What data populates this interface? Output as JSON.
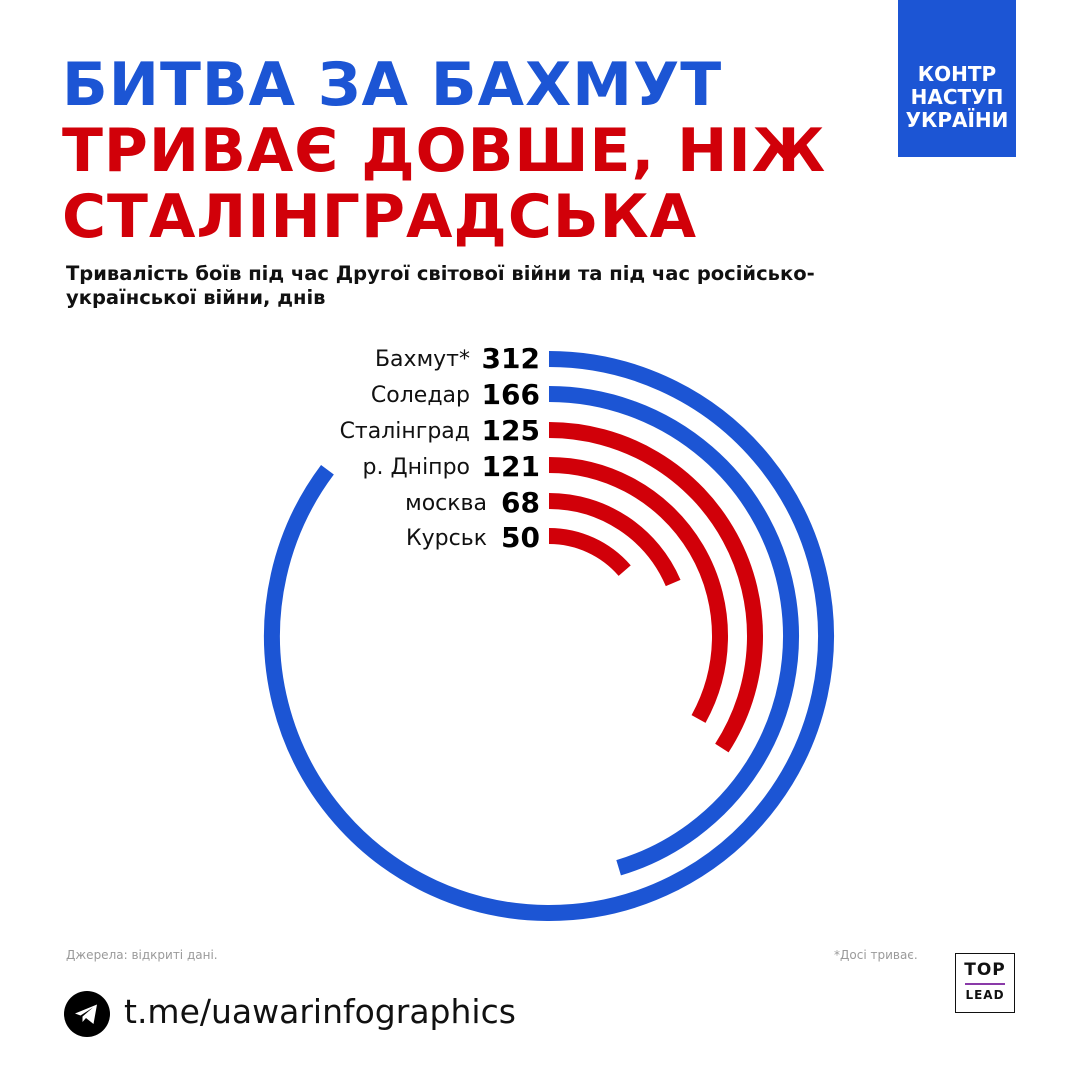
{
  "header": {
    "title_line1": "БИТВА ЗА БАХМУТ",
    "title_line2": "ТРИВАЄ ДОВШЕ, НІЖ",
    "title_line3": "СТАЛІНГРАДСЬКА",
    "subtitle": "Тривалість боїв під час Другої світової війни та під час російсько-української війни, днів"
  },
  "badge": {
    "line1": "КОНТР",
    "line2": "НАСТУП",
    "line3": "УКРАЇНИ"
  },
  "chart_data": {
    "type": "radial-bar",
    "unit": "днів",
    "categories": [
      "Бахмут*",
      "Соледар",
      "Сталінград",
      "р. Дніпро",
      "москва",
      "Курськ"
    ],
    "values": [
      312,
      166,
      125,
      121,
      68,
      50
    ],
    "series_colors": [
      "#1c55d4",
      "#1c55d4",
      "#d10009",
      "#d10009",
      "#d10009",
      "#d10009"
    ],
    "title": "",
    "legend": "none",
    "grid": false
  },
  "footer": {
    "source": "Джерела: відкриті дані.",
    "note": "*Досі триває.",
    "telegram_link": "t.me/uawarinfographics",
    "logo_top": "TOP",
    "logo_bottom": "LEAD"
  },
  "icons": {
    "telegram": "telegram-icon"
  }
}
